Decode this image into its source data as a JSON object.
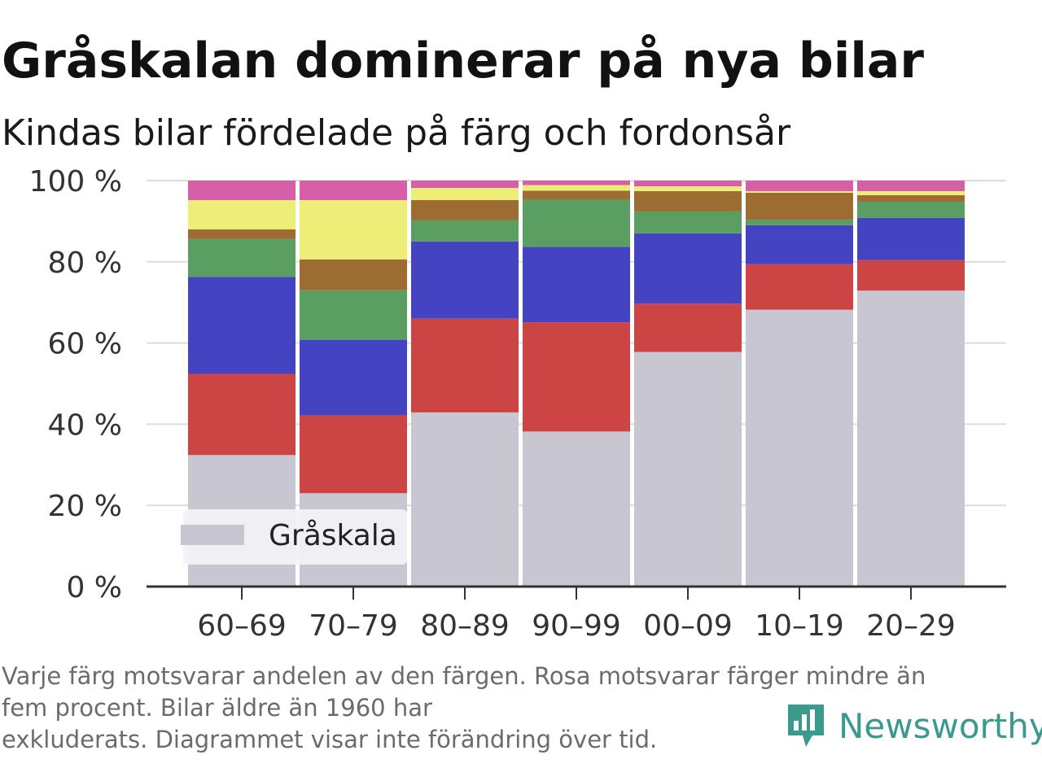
{
  "title": "Gråskalan dominerar på nya bilar",
  "subtitle": "Kindas bilar fördelade på färg och fordonsår",
  "footnote": {
    "line1": "Varje färg motsvarar andelen av den färgen. Rosa motsvarar färger mindre än",
    "line2": "fem procent. Bilar äldre än 1960 har",
    "line3": "exkluderats. Diagrammet visar inte förändring över tid."
  },
  "brand": {
    "name": "Newsworthy",
    "icon": "newsworthy-logo-icon",
    "color": "#3a9a8e"
  },
  "chart_data": {
    "type": "bar",
    "stacked": true,
    "categories": [
      "60–69",
      "70–79",
      "80–89",
      "90–99",
      "00–09",
      "10–19",
      "20–29"
    ],
    "y_ticks": [
      "0 %",
      "20 %",
      "40 %",
      "60 %",
      "80 %",
      "100 %"
    ],
    "ylim": [
      0,
      100
    ],
    "grid": true,
    "legend": {
      "placement": "bottom-left",
      "entries": [
        "Gråskala"
      ]
    },
    "series": [
      {
        "name": "Gråskala",
        "color": "#c8c6d1",
        "values": [
          32.4,
          23.0,
          42.9,
          38.2,
          57.8,
          68.2,
          72.9
        ]
      },
      {
        "color": "#cc4444",
        "values": [
          20.0,
          19.2,
          23.1,
          26.9,
          11.9,
          11.2,
          7.5
        ]
      },
      {
        "color": "#4444c2",
        "values": [
          23.9,
          18.6,
          19.0,
          18.6,
          17.3,
          9.6,
          10.4
        ]
      },
      {
        "color": "#5b9e62",
        "values": [
          9.3,
          12.2,
          5.2,
          11.6,
          5.4,
          1.4,
          4.0
        ]
      },
      {
        "color": "#9c6c32",
        "values": [
          2.4,
          7.6,
          5.0,
          2.2,
          5.0,
          6.6,
          1.6
        ]
      },
      {
        "color": "#ecee78",
        "values": [
          7.2,
          14.6,
          3.0,
          1.4,
          1.2,
          0.4,
          1.0
        ]
      },
      {
        "color": "#d65fa8",
        "values": [
          4.8,
          4.8,
          1.8,
          1.1,
          1.4,
          2.6,
          2.6
        ]
      }
    ]
  }
}
